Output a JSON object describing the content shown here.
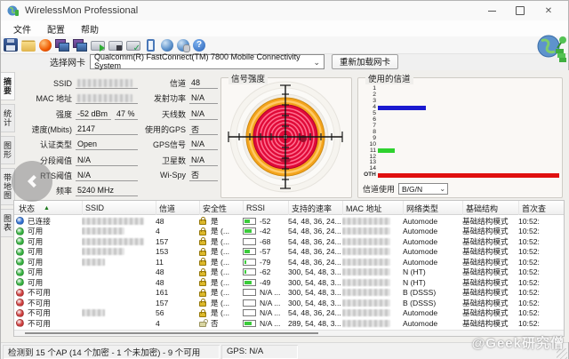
{
  "window": {
    "title": "WirelessMon Professional",
    "menus": [
      "文件",
      "配置",
      "帮助"
    ],
    "controls": [
      "minimize",
      "maximize",
      "close"
    ]
  },
  "toolbar": {
    "icons": [
      "save",
      "open",
      "record",
      "net1",
      "net2",
      "print-export",
      "print",
      "print-check",
      "battery",
      "globe",
      "globe2",
      "help"
    ]
  },
  "adapter": {
    "label": "选择网卡",
    "value": "Qualcomm(R) FastConnect(TM) 7800 Mobile Connectivity System",
    "reload_button": "重新加载网卡"
  },
  "sidebar": {
    "tabs": [
      "摘要",
      "统计",
      "图形",
      "带地图",
      "图表"
    ]
  },
  "summary": {
    "left": [
      {
        "label": "SSID",
        "masked": true
      },
      {
        "label": "MAC 地址",
        "masked": true
      },
      {
        "label": "强度",
        "value": "-52 dBm",
        "value2": "47 %"
      },
      {
        "label": "速度(Mbits)",
        "value": "2147"
      },
      {
        "label": "认证类型",
        "value": "Open"
      },
      {
        "label": "分段阈值",
        "value": "N/A"
      },
      {
        "label": "RTS阈值",
        "value": "N/A"
      },
      {
        "label": "频率",
        "value": "5240 MHz"
      }
    ],
    "right": [
      {
        "label": "信道",
        "value": "48"
      },
      {
        "label": "发射功率",
        "value": "N/A"
      },
      {
        "label": "天线数",
        "value": "N/A"
      },
      {
        "label": "使用的GPS",
        "value": "否"
      },
      {
        "label": "GPS信号",
        "value": "N/A"
      },
      {
        "label": "卫星数",
        "value": "N/A"
      },
      {
        "label": "Wi-Spy",
        "value": "否"
      }
    ]
  },
  "signal_panel": {
    "title": "信号强度"
  },
  "channels_panel": {
    "title": "使用的信道",
    "usage_label": "信道使用",
    "usage_value": "B/G/N",
    "channels": [
      {
        "label": "1"
      },
      {
        "label": "2"
      },
      {
        "label": "3"
      },
      {
        "label": "4",
        "bar_pct": 26,
        "bar_color": "#1a1ad0"
      },
      {
        "label": "5"
      },
      {
        "label": "6"
      },
      {
        "label": "7"
      },
      {
        "label": "8"
      },
      {
        "label": "9"
      },
      {
        "label": "10"
      },
      {
        "label": "11",
        "bar_pct": 9,
        "bar_color": "#2ed22e"
      },
      {
        "label": "12"
      },
      {
        "label": "13"
      },
      {
        "label": "14"
      },
      {
        "label": "OTH",
        "bar_pct": 100,
        "bar_color": "#e01010"
      }
    ]
  },
  "table": {
    "columns": [
      "状态",
      "SSID",
      "信道",
      "安全性",
      "RSSI",
      "支持的速率",
      "MAC 地址",
      "网络类型",
      "基础结构",
      "首次查"
    ],
    "sort_arrow": "▲",
    "rows": [
      {
        "kind": "connected",
        "status": "已连接",
        "ssid_mask": "lg",
        "channel": "48",
        "lock": true,
        "security": "是",
        "rssi": "-52",
        "batt": 45,
        "rates": "54, 48, 36, 24...",
        "net": "Automode",
        "infra": "基础结构模式",
        "seen": "10:52:"
      },
      {
        "kind": "ok",
        "status": "可用",
        "ssid_mask": "md",
        "channel": "4",
        "lock": true,
        "security": "是 (...",
        "rssi": "-42",
        "batt": 60,
        "rates": "54, 48, 36, 24...",
        "net": "Automode",
        "infra": "基础结构模式",
        "seen": "10:52:"
      },
      {
        "kind": "ok",
        "status": "可用",
        "ssid_mask": "lg",
        "channel": "157",
        "lock": true,
        "security": "是 (...",
        "rssi": "-68",
        "batt": 0,
        "rates": "54, 48, 36, 24...",
        "net": "Automode",
        "infra": "基础结构模式",
        "seen": "10:52:"
      },
      {
        "kind": "ok",
        "status": "可用",
        "ssid_mask": "md",
        "channel": "153",
        "lock": true,
        "security": "是 (...",
        "rssi": "-57",
        "batt": 45,
        "rates": "54, 48, 36, 24...",
        "net": "Automode",
        "infra": "基础结构模式",
        "seen": "10:52:"
      },
      {
        "kind": "ok",
        "status": "可用",
        "ssid_mask": "sm",
        "channel": "11",
        "lock": true,
        "security": "是 (...",
        "rssi": "-79",
        "batt": 12,
        "rates": "54, 48, 36, 24...",
        "net": "Automode",
        "infra": "基础结构模式",
        "seen": "10:52:"
      },
      {
        "kind": "ok",
        "status": "可用",
        "ssid_mask": "none",
        "channel": "48",
        "lock": true,
        "security": "是 (...",
        "rssi": "-62",
        "batt": 15,
        "rates": "300, 54, 48, 3...",
        "net": "N (HT)",
        "infra": "基础结构模式",
        "seen": "10:52:"
      },
      {
        "kind": "ok",
        "status": "可用",
        "ssid_mask": "none",
        "channel": "48",
        "lock": true,
        "security": "是 (...",
        "rssi": "-49",
        "batt": 62,
        "rates": "300, 54, 48, 3...",
        "net": "N (HT)",
        "infra": "基础结构模式",
        "seen": "10:52:"
      },
      {
        "kind": "bad",
        "status": "不可用",
        "ssid_mask": "none",
        "channel": "161",
        "lock": true,
        "security": "是 (...",
        "rssi": "N/A ...",
        "batt": 0,
        "rates": "300, 54, 48, 3...",
        "net": "B (DSSS)",
        "infra": "基础结构模式",
        "seen": "10:52:"
      },
      {
        "kind": "bad",
        "status": "不可用",
        "ssid_mask": "none",
        "channel": "157",
        "lock": true,
        "security": "是 (...",
        "rssi": "N/A ...",
        "batt": 0,
        "rates": "300, 54, 48, 3...",
        "net": "B (DSSS)",
        "infra": "基础结构模式",
        "seen": "10:52:"
      },
      {
        "kind": "bad",
        "status": "不可用",
        "ssid_mask": "sm",
        "channel": "56",
        "lock": true,
        "security": "是 (...",
        "rssi": "N/A ...",
        "batt": 0,
        "rates": "54, 48, 36, 24...",
        "net": "Automode",
        "infra": "基础结构模式",
        "seen": "10:52:"
      },
      {
        "kind": "bad",
        "status": "不可用",
        "ssid_mask": "none",
        "channel": "4",
        "lock": false,
        "security": "否",
        "rssi": "N/A ...",
        "batt": 58,
        "rates": "289, 54, 48, 3...",
        "net": "Automode",
        "infra": "基础结构模式",
        "seen": "10:52:"
      }
    ]
  },
  "status_bar": {
    "detected": "检测到 15 个AP (14 个加密 - 1 个未加密) - 9 个可用",
    "gps": "GPS: N/A"
  },
  "watermark": {
    "text": "@Geek研究僧"
  },
  "colors": {
    "status_connected": "#2f6fd0",
    "status_available": "#35b13f",
    "status_unavailable": "#cd3c3c",
    "batt_fill": "#3ccb3c",
    "radar_orange": "#f4a41c",
    "radar_red": "#e00a38"
  }
}
